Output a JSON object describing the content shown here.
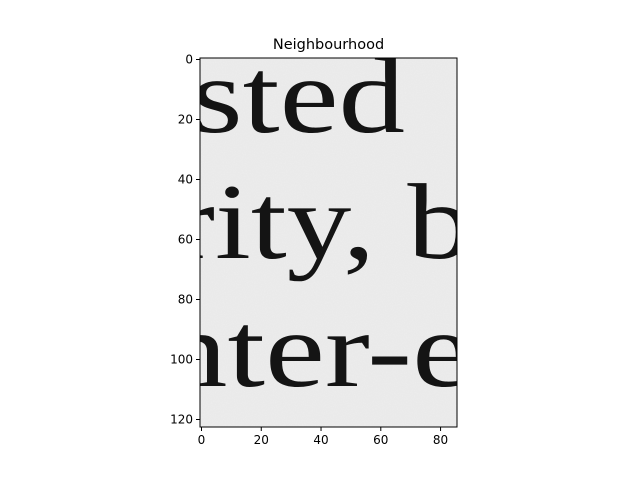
{
  "chart_data": {
    "type": "heatmap",
    "title": "Neighbourhood",
    "colormap": "gray",
    "xlabel": "",
    "ylabel": "",
    "xlim": [
      -0.5,
      85.5
    ],
    "ylim": [
      122.5,
      -0.5
    ],
    "y_inverted": true,
    "x_ticks": [
      0,
      20,
      40,
      60,
      80
    ],
    "y_ticks": [
      0,
      20,
      40,
      60,
      80,
      100,
      120
    ],
    "grid": false,
    "text_lines": [
      {
        "text": "sted"
      },
      {
        "text": "rity, b"
      },
      {
        "text": "nter-e"
      }
    ],
    "colors": {
      "paper": "#ededed",
      "ink": "#141414",
      "axis": "#000000"
    }
  }
}
